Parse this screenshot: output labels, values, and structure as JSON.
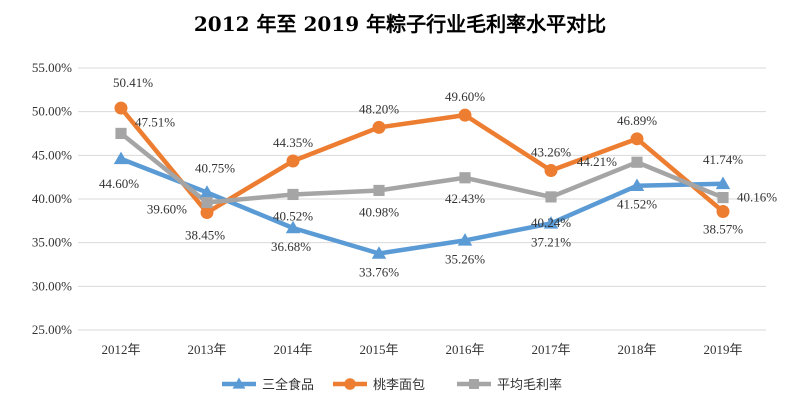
{
  "chart_data": {
    "type": "line",
    "title": "2012 年至 2019 年粽子行业毛利率水平对比",
    "categories": [
      "2012年",
      "2013年",
      "2014年",
      "2015年",
      "2016年",
      "2017年",
      "2018年",
      "2019年"
    ],
    "ylim": [
      25,
      55
    ],
    "yticks": [
      "25.00%",
      "30.00%",
      "35.00%",
      "40.00%",
      "45.00%",
      "50.00%",
      "55.00%"
    ],
    "grid": true,
    "legend": "bottom",
    "series": [
      {
        "name": "三全食品",
        "color": "#5b9bd5",
        "marker": "triangle",
        "values": [
          44.6,
          40.75,
          36.68,
          33.76,
          35.26,
          37.21,
          41.52,
          41.74
        ],
        "labels": [
          "44.60%",
          "40.75%",
          "36.68%",
          "33.76%",
          "35.26%",
          "37.21%",
          "41.52%",
          "41.74%"
        ]
      },
      {
        "name": "桃李面包",
        "color": "#ed7d31",
        "marker": "circle",
        "values": [
          50.41,
          38.45,
          44.35,
          48.2,
          49.6,
          43.26,
          46.89,
          38.57
        ],
        "labels": [
          "50.41%",
          "38.45%",
          "44.35%",
          "48.20%",
          "49.60%",
          "43.26%",
          "46.89%",
          "38.57%"
        ]
      },
      {
        "name": "平均毛利率",
        "color": "#a5a5a5",
        "marker": "square",
        "values": [
          47.51,
          39.6,
          40.52,
          40.98,
          42.43,
          40.24,
          44.21,
          40.16
        ],
        "labels": [
          "47.51%",
          "39.60%",
          "40.52%",
          "40.98%",
          "42.43%",
          "40.24%",
          "44.21%",
          "40.16%"
        ]
      }
    ]
  }
}
